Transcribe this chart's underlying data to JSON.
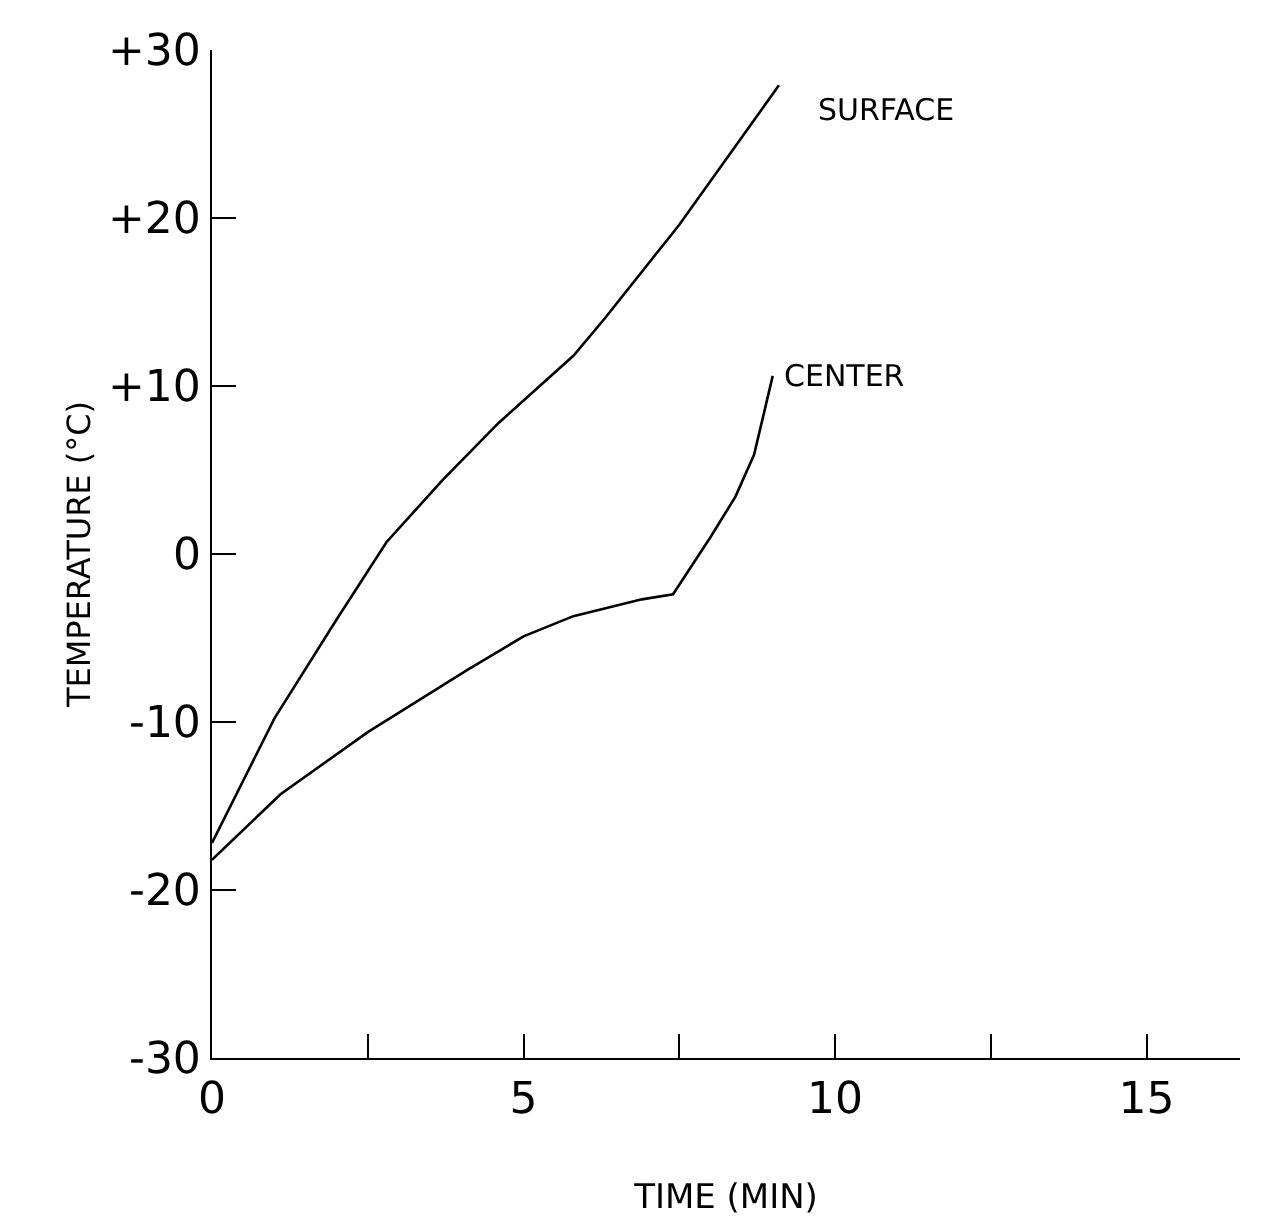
{
  "chart_data": {
    "type": "line",
    "xlabel": "TIME (MIN)",
    "ylabel": "TEMPERATURE (°C)",
    "series": [
      {
        "name": "SURFACE",
        "color": "#000000",
        "x": [
          0,
          1.0,
          2.0,
          2.8,
          3.7,
          4.6,
          5.8,
          6.3,
          7.5,
          9.1
        ],
        "values": [
          -17.2,
          -9.8,
          -3.9,
          0.7,
          4.4,
          7.8,
          11.8,
          14.0,
          19.6,
          27.9
        ]
      },
      {
        "name": "CENTER",
        "color": "#000000",
        "x": [
          0,
          1.1,
          2.5,
          4.1,
          5.0,
          5.8,
          6.9,
          7.4,
          8.0,
          8.4,
          8.7,
          9.0
        ],
        "values": [
          -18.2,
          -14.3,
          -10.6,
          -6.9,
          -4.9,
          -3.7,
          -2.7,
          -2.4,
          1.0,
          3.4,
          5.9,
          10.6
        ]
      }
    ],
    "xlim": [
      0,
      16.5
    ],
    "xticks": [
      0,
      {
        "value": 2.5,
        "label": null
      },
      5,
      {
        "value": 7.5,
        "label": null
      },
      10,
      {
        "value": 12.5,
        "label": null
      },
      15
    ],
    "ylim": [
      -30,
      30
    ],
    "yticks": [
      {
        "value": 30,
        "label": "+30"
      },
      {
        "value": 20,
        "label": "+20"
      },
      {
        "value": 10,
        "label": "+10"
      },
      0,
      -10,
      -20,
      -30
    ],
    "legend": false,
    "marker": "none",
    "line_style": "solid"
  }
}
